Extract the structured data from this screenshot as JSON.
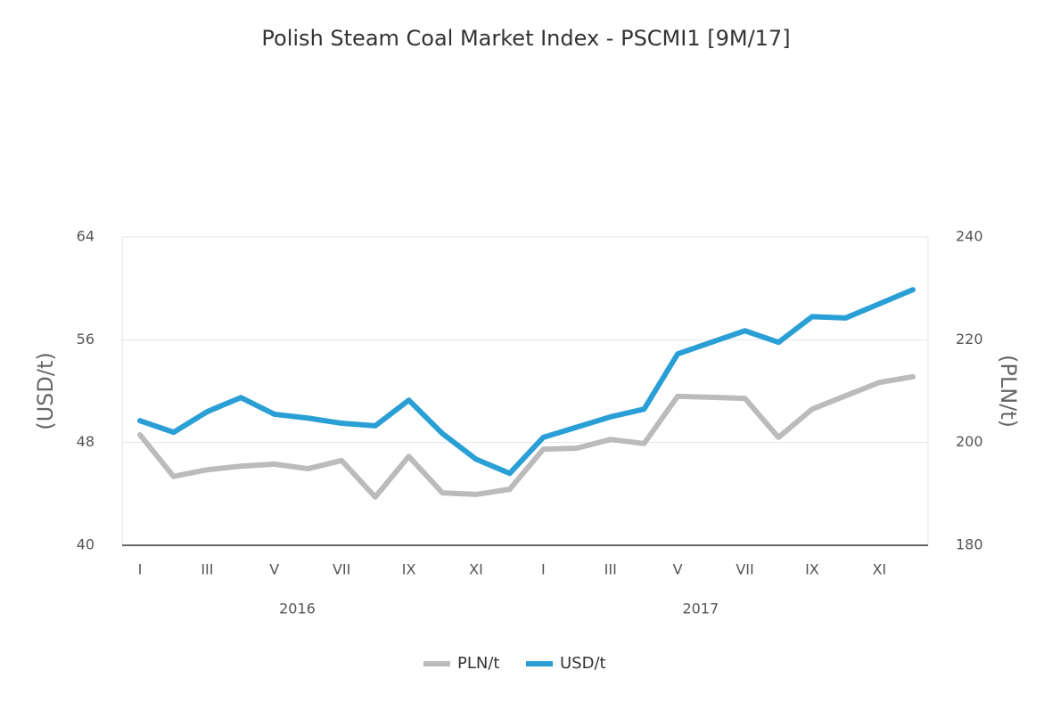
{
  "chart_data": {
    "type": "line",
    "title": "Polish Steam Coal Market Index - PSCMI1 [9M/17]",
    "y_label": "(USD/t)",
    "y2_label": "(PLN/t)",
    "categories": [
      "I",
      null,
      "III",
      null,
      "V",
      null,
      "VII",
      null,
      "IX",
      null,
      "XI",
      null,
      "I",
      null,
      "III",
      null,
      "V",
      null,
      "VII",
      null,
      "IX",
      null,
      "XI",
      null
    ],
    "year_labels": [
      "2016",
      "2017"
    ],
    "ylim": [
      40,
      64
    ],
    "yticks": [
      40,
      48,
      56,
      64
    ],
    "y2lim": [
      180,
      240
    ],
    "y2ticks": [
      180,
      200,
      220,
      240
    ],
    "grid": true,
    "legend": "bottom",
    "series": [
      {
        "name": "PLN/t",
        "color": "#bbbbbb",
        "axis": "y2",
        "values": [
          201.5,
          193.4,
          194.7,
          195.4,
          195.8,
          194.9,
          196.5,
          189.4,
          197.3,
          190.2,
          189.9,
          190.9,
          198.7,
          198.9,
          200.6,
          199.8,
          209.0,
          208.8,
          208.6,
          201.0,
          206.5,
          209.1,
          211.7,
          212.8
        ]
      },
      {
        "name": "USD/t",
        "color": "#2a9fd6",
        "axis": "y",
        "values": [
          49.7,
          48.8,
          50.4,
          51.5,
          50.2,
          49.9,
          49.5,
          49.3,
          51.3,
          48.7,
          46.7,
          45.6,
          48.4,
          49.2,
          50.0,
          50.6,
          54.9,
          55.8,
          56.7,
          55.8,
          57.8,
          57.7,
          58.8,
          59.9
        ]
      }
    ]
  }
}
